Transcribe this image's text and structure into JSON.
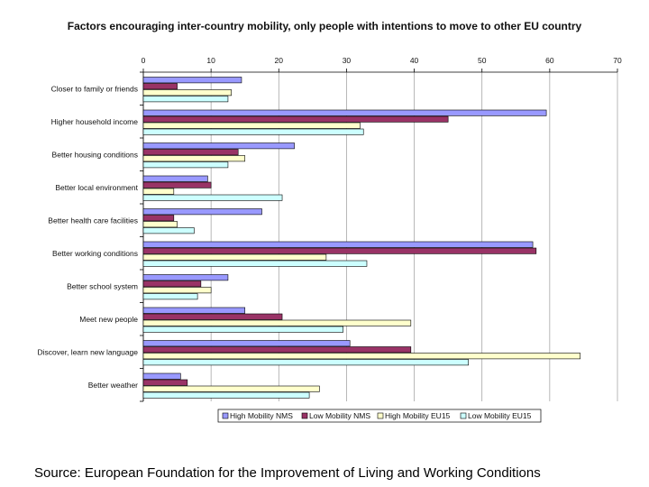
{
  "chart_data": {
    "type": "bar",
    "orientation": "horizontal",
    "title": "Factors encouraging inter-country mobility, only people with intentions to move to other EU country",
    "xlabel": "",
    "ylabel": "",
    "xlim": [
      0,
      70
    ],
    "x_ticks": [
      "0",
      "10",
      "20",
      "30",
      "40",
      "50",
      "60",
      "70"
    ],
    "grid": "vertical",
    "legend_position": "bottom",
    "categories": [
      "Closer to family or friends",
      "Higher household income",
      "Better housing conditions",
      "Better local environment",
      "Better health care facilities",
      "Better working conditions",
      "Better school system",
      "Meet new people",
      "Discover, learn new language",
      "Better weather"
    ],
    "series": [
      {
        "name": "High Mobility NMS",
        "color": "#9999ff",
        "values": [
          14.5,
          59.5,
          22.3,
          9.5,
          17.5,
          57.5,
          12.5,
          15,
          30.5,
          5.5
        ]
      },
      {
        "name": "Low Mobility NMS",
        "color": "#993366",
        "values": [
          5,
          45,
          14,
          10,
          4.5,
          58,
          8.5,
          20.5,
          39.5,
          6.5
        ]
      },
      {
        "name": "High Mobility EU15",
        "color": "#ffffcc",
        "values": [
          13,
          32,
          15,
          4.5,
          5,
          27,
          10,
          39.5,
          64.5,
          26
        ]
      },
      {
        "name": "Low Mobility EU15",
        "color": "#ccffff",
        "values": [
          12.5,
          32.5,
          12.5,
          20.5,
          7.5,
          33,
          8,
          29.5,
          48,
          24.5
        ]
      }
    ]
  },
  "footer": {
    "source": "Source: European Foundation for the Improvement of Living and Working Conditions"
  }
}
